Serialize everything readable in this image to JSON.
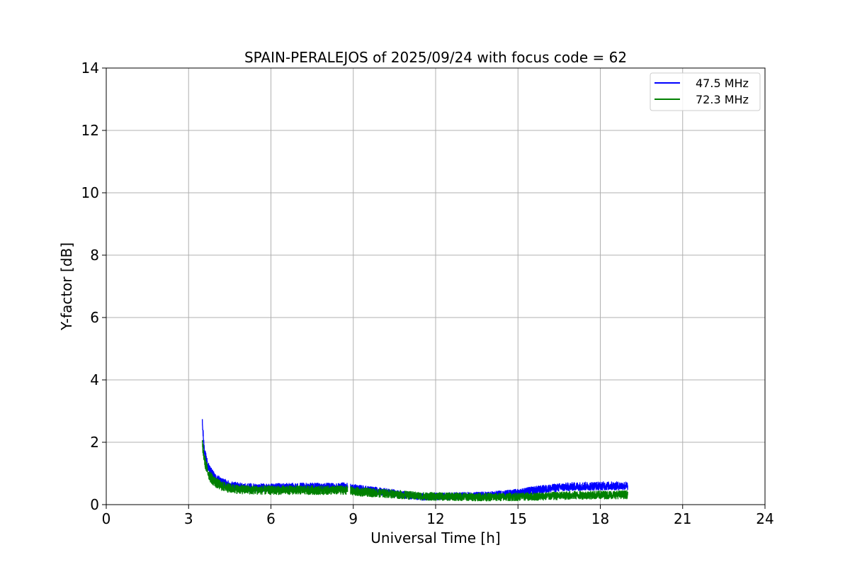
{
  "chart_data": {
    "type": "line",
    "title": "SPAIN-PERALEJOS of 2025/09/24 with focus code = 62",
    "xlabel": "Universal Time [h]",
    "ylabel": "Y-factor [dB]",
    "xlim": [
      0,
      24
    ],
    "ylim": [
      0,
      14
    ],
    "xticks": [
      0,
      3,
      6,
      9,
      12,
      15,
      18,
      21,
      24
    ],
    "yticks": [
      0,
      2,
      4,
      6,
      8,
      10,
      12,
      14
    ],
    "xtick_labels": [
      "0",
      "3",
      "6",
      "9",
      "12",
      "15",
      "18",
      "21",
      "24"
    ],
    "ytick_labels": [
      "0",
      "2",
      "4",
      "6",
      "8",
      "10",
      "12",
      "14"
    ],
    "grid": true,
    "legend_position": "top-right",
    "series": [
      {
        "name": "47.5 MHz",
        "color": "#0000ff",
        "noise_band": 0.16,
        "gaps": [
          [
            8.8,
            8.9
          ]
        ],
        "x": [
          3.5,
          3.55,
          3.6,
          3.7,
          3.8,
          3.9,
          4.0,
          4.2,
          4.5,
          5.0,
          6.0,
          7.0,
          8.0,
          8.8,
          9.0,
          10.0,
          11.0,
          11.5,
          12.0,
          13.0,
          14.0,
          15.0,
          15.5,
          16.0,
          16.5,
          17.0,
          18.0,
          19.0
        ],
        "values": [
          2.6,
          2.0,
          1.6,
          1.25,
          1.05,
          0.92,
          0.82,
          0.72,
          0.62,
          0.55,
          0.54,
          0.56,
          0.56,
          0.57,
          0.52,
          0.42,
          0.3,
          0.25,
          0.26,
          0.28,
          0.3,
          0.38,
          0.45,
          0.5,
          0.55,
          0.58,
          0.6,
          0.6
        ]
      },
      {
        "name": "72.3 MHz",
        "color": "#008000",
        "noise_band": 0.18,
        "gaps": [
          [
            8.8,
            8.9
          ]
        ],
        "x": [
          3.5,
          3.55,
          3.6,
          3.7,
          3.8,
          3.9,
          4.0,
          4.2,
          4.5,
          5.0,
          6.0,
          7.0,
          8.0,
          8.8,
          9.0,
          10.0,
          11.0,
          11.5,
          12.0,
          13.0,
          14.0,
          15.0,
          15.5,
          16.0,
          16.5,
          17.0,
          18.0,
          19.0
        ],
        "values": [
          1.95,
          1.6,
          1.35,
          1.05,
          0.88,
          0.78,
          0.7,
          0.6,
          0.52,
          0.48,
          0.46,
          0.47,
          0.46,
          0.47,
          0.42,
          0.37,
          0.3,
          0.27,
          0.26,
          0.25,
          0.24,
          0.25,
          0.26,
          0.27,
          0.28,
          0.3,
          0.31,
          0.32
        ]
      }
    ]
  }
}
